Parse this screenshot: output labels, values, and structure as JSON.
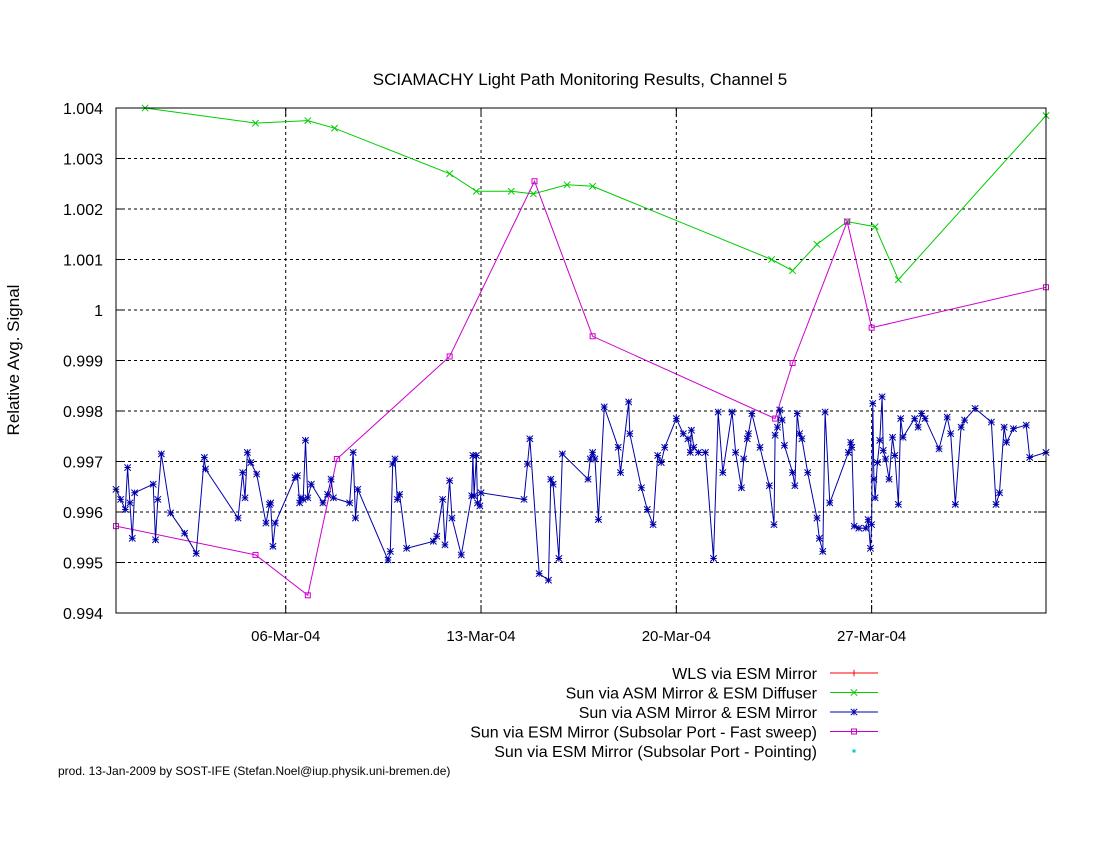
{
  "chart_data": {
    "type": "line",
    "title": "SCIAMACHY Light Path Monitoring Results, Channel 5",
    "ylabel": "Relative Avg. Signal",
    "xlabel": "",
    "xlim": [
      "2004-02-28T22:00",
      "2004-04-02T06:00"
    ],
    "ylim": [
      0.994,
      1.004
    ],
    "yticks": [
      {
        "value": 0.994,
        "label": "0.994"
      },
      {
        "value": 0.995,
        "label": "0.995"
      },
      {
        "value": 0.996,
        "label": "0.996"
      },
      {
        "value": 0.997,
        "label": "0.997"
      },
      {
        "value": 0.998,
        "label": "0.998"
      },
      {
        "value": 0.999,
        "label": "0.999"
      },
      {
        "value": 1.0,
        "label": "1"
      },
      {
        "value": 1.001,
        "label": "1.001"
      },
      {
        "value": 1.002,
        "label": "1.002"
      },
      {
        "value": 1.003,
        "label": "1.003"
      },
      {
        "value": 1.004,
        "label": "1.004"
      }
    ],
    "xticks": [
      {
        "value": "2004-03-06",
        "label": "06-Mar-04"
      },
      {
        "value": "2004-03-13",
        "label": "13-Mar-04"
      },
      {
        "value": "2004-03-20",
        "label": "20-Mar-04"
      },
      {
        "value": "2004-03-27",
        "label": "27-Mar-04"
      }
    ],
    "grid": true,
    "legend_position": "bottom-right",
    "series": [
      {
        "name": "WLS via ESM Mirror",
        "color": "#ff0000",
        "marker": "plus",
        "points": []
      },
      {
        "name": "Sun via ASM Mirror & ESM Diffuser",
        "color": "#00cc00",
        "marker": "cross",
        "points": [
          [
            "2004-02-29T23:00",
            1.004
          ],
          [
            "2004-03-04T22:00",
            1.0037
          ],
          [
            "2004-03-06T19:00",
            1.00375
          ],
          [
            "2004-03-07T18:00",
            1.0036
          ],
          [
            "2004-03-11T21:00",
            1.0027
          ],
          [
            "2004-03-12T20:00",
            1.00235
          ],
          [
            "2004-03-14T02:00",
            1.00235
          ],
          [
            "2004-03-14T21:00",
            1.0023
          ],
          [
            "2004-03-16T02:00",
            1.00248
          ],
          [
            "2004-03-17T00:00",
            1.00245
          ],
          [
            "2004-03-23T10:00",
            1.001
          ],
          [
            "2004-03-24T04:00",
            1.00078
          ],
          [
            "2004-03-25T01:00",
            1.0013
          ],
          [
            "2004-03-26T03:00",
            1.00175
          ],
          [
            "2004-03-27T03:00",
            1.00165
          ],
          [
            "2004-03-27T23:00",
            1.0006
          ],
          [
            "2004-04-02T06:00",
            1.00385
          ]
        ]
      },
      {
        "name": "Sun via ASM Mirror & ESM Mirror",
        "color": "#0000aa",
        "marker": "star",
        "points": [
          [
            "2004-02-28T22:00",
            0.99645
          ],
          [
            "2004-02-29T02:00",
            0.99625
          ],
          [
            "2004-02-29T06:00",
            0.99605
          ],
          [
            "2004-02-29T08:00",
            0.99688
          ],
          [
            "2004-02-29T10:00",
            0.99618
          ],
          [
            "2004-02-29T12:00",
            0.99548
          ],
          [
            "2004-02-29T14:00",
            0.99638
          ],
          [
            "2004-03-01T06:00",
            0.99655
          ],
          [
            "2004-03-01T08:00",
            0.99545
          ],
          [
            "2004-03-01T10:00",
            0.99625
          ],
          [
            "2004-03-01T13:00",
            0.99715
          ],
          [
            "2004-03-01T21:00",
            0.99598
          ],
          [
            "2004-03-02T09:00",
            0.99558
          ],
          [
            "2004-03-02T19:00",
            0.99518
          ],
          [
            "2004-03-03T02:00",
            0.99708
          ],
          [
            "2004-03-03T03:00",
            0.99685
          ],
          [
            "2004-03-04T07:00",
            0.99588
          ],
          [
            "2004-03-04T11:00",
            0.99678
          ],
          [
            "2004-03-04T13:00",
            0.99628
          ],
          [
            "2004-03-04T15:00",
            0.99718
          ],
          [
            "2004-03-04T18:00",
            0.99698
          ],
          [
            "2004-03-04T23:00",
            0.99675
          ],
          [
            "2004-03-05T07:00",
            0.99578
          ],
          [
            "2004-03-05T10:00",
            0.99615
          ],
          [
            "2004-03-05T11:00",
            0.99618
          ],
          [
            "2004-03-05T13:00",
            0.99532
          ],
          [
            "2004-03-05T15:00",
            0.99578
          ],
          [
            "2004-03-06T08:00",
            0.99668
          ],
          [
            "2004-03-06T10:00",
            0.99672
          ],
          [
            "2004-03-06T12:00",
            0.99618
          ],
          [
            "2004-03-06T13:00",
            0.99628
          ],
          [
            "2004-03-06T15:00",
            0.99625
          ],
          [
            "2004-03-06T17:00",
            0.99742
          ],
          [
            "2004-03-06T19:00",
            0.99628
          ],
          [
            "2004-03-06T22:00",
            0.99655
          ],
          [
            "2004-03-07T08:00",
            0.99618
          ],
          [
            "2004-03-07T12:00",
            0.99635
          ],
          [
            "2004-03-07T15:00",
            0.99665
          ],
          [
            "2004-03-07T17:00",
            0.99628
          ],
          [
            "2004-03-08T07:00",
            0.99618
          ],
          [
            "2004-03-08T10:00",
            0.99718
          ],
          [
            "2004-03-08T12:00",
            0.99588
          ],
          [
            "2004-03-08T14:00",
            0.99645
          ],
          [
            "2004-03-09T16:00",
            0.99505
          ],
          [
            "2004-03-09T18:00",
            0.99522
          ],
          [
            "2004-03-09T20:00",
            0.99695
          ],
          [
            "2004-03-09T22:00",
            0.99705
          ],
          [
            "2004-03-10T00:00",
            0.99625
          ],
          [
            "2004-03-10T02:00",
            0.99635
          ],
          [
            "2004-03-10T08:00",
            0.99528
          ],
          [
            "2004-03-11T07:00",
            0.99542
          ],
          [
            "2004-03-11T10:00",
            0.99552
          ],
          [
            "2004-03-11T15:00",
            0.99625
          ],
          [
            "2004-03-11T17:00",
            0.99535
          ],
          [
            "2004-03-11T21:00",
            0.99662
          ],
          [
            "2004-03-11T23:00",
            0.99588
          ],
          [
            "2004-03-12T07:00",
            0.99515
          ],
          [
            "2004-03-12T16:00",
            0.99632
          ],
          [
            "2004-03-12T17:00",
            0.99712
          ],
          [
            "2004-03-12T18:00",
            0.99632
          ],
          [
            "2004-03-12T20:00",
            0.99712
          ],
          [
            "2004-03-12T21:00",
            0.99618
          ],
          [
            "2004-03-12T23:00",
            0.99612
          ],
          [
            "2004-03-13T00:00",
            0.99638
          ],
          [
            "2004-03-14T13:00",
            0.99625
          ],
          [
            "2004-03-14T16:00",
            0.99695
          ],
          [
            "2004-03-14T18:00",
            0.99745
          ],
          [
            "2004-03-15T02:00",
            0.99478
          ],
          [
            "2004-03-15T10:00",
            0.99465
          ],
          [
            "2004-03-15T12:00",
            0.99665
          ],
          [
            "2004-03-15T14:00",
            0.99655
          ],
          [
            "2004-03-15T19:00",
            0.99508
          ],
          [
            "2004-03-15T22:00",
            0.99715
          ],
          [
            "2004-03-16T20:00",
            0.99665
          ],
          [
            "2004-03-16T22:00",
            0.99705
          ],
          [
            "2004-03-17T00:00",
            0.99718
          ],
          [
            "2004-03-17T02:00",
            0.99705
          ],
          [
            "2004-03-17T05:00",
            0.99585
          ],
          [
            "2004-03-17T10:00",
            0.99808
          ],
          [
            "2004-03-17T22:00",
            0.99728
          ],
          [
            "2004-03-18T00:00",
            0.99678
          ],
          [
            "2004-03-18T07:00",
            0.99818
          ],
          [
            "2004-03-18T08:00",
            0.99755
          ],
          [
            "2004-03-18T18:00",
            0.99648
          ],
          [
            "2004-03-18T23:00",
            0.99605
          ],
          [
            "2004-03-19T04:00",
            0.99575
          ],
          [
            "2004-03-19T08:00",
            0.99712
          ],
          [
            "2004-03-19T11:00",
            0.99698
          ],
          [
            "2004-03-19T14:00",
            0.99728
          ],
          [
            "2004-03-20T00:00",
            0.99785
          ],
          [
            "2004-03-20T06:00",
            0.99755
          ],
          [
            "2004-03-20T10:00",
            0.99745
          ],
          [
            "2004-03-20T12:00",
            0.99718
          ],
          [
            "2004-03-20T13:00",
            0.99762
          ],
          [
            "2004-03-20T15:00",
            0.99728
          ],
          [
            "2004-03-20T19:00",
            0.99718
          ],
          [
            "2004-03-21T01:00",
            0.99718
          ],
          [
            "2004-03-21T08:00",
            0.99508
          ],
          [
            "2004-03-21T12:00",
            0.99798
          ],
          [
            "2004-03-21T16:00",
            0.99678
          ],
          [
            "2004-03-22T00:00",
            0.99798
          ],
          [
            "2004-03-22T03:00",
            0.99718
          ],
          [
            "2004-03-22T08:00",
            0.99648
          ],
          [
            "2004-03-22T10:00",
            0.99705
          ],
          [
            "2004-03-22T13:00",
            0.99745
          ],
          [
            "2004-03-22T14:00",
            0.99755
          ],
          [
            "2004-03-22T17:00",
            0.99795
          ],
          [
            "2004-03-23T00:00",
            0.99728
          ],
          [
            "2004-03-23T08:00",
            0.99652
          ],
          [
            "2004-03-23T12:00",
            0.99575
          ],
          [
            "2004-03-23T13:00",
            0.99752
          ],
          [
            "2004-03-23T15:00",
            0.99768
          ],
          [
            "2004-03-23T17:00",
            0.99802
          ],
          [
            "2004-03-23T19:00",
            0.99782
          ],
          [
            "2004-03-23T21:00",
            0.99732
          ],
          [
            "2004-03-24T04:00",
            0.99678
          ],
          [
            "2004-03-24T06:00",
            0.99652
          ],
          [
            "2004-03-24T08:00",
            0.99795
          ],
          [
            "2004-03-24T10:00",
            0.99755
          ],
          [
            "2004-03-24T12:00",
            0.99745
          ],
          [
            "2004-03-24T17:00",
            0.99678
          ],
          [
            "2004-03-25T01:00",
            0.99588
          ],
          [
            "2004-03-25T03:00",
            0.99548
          ],
          [
            "2004-03-25T06:00",
            0.99522
          ],
          [
            "2004-03-25T08:00",
            0.99798
          ],
          [
            "2004-03-25T12:00",
            0.99618
          ],
          [
            "2004-03-26T04:00",
            0.99718
          ],
          [
            "2004-03-26T06:00",
            0.99738
          ],
          [
            "2004-03-26T07:00",
            0.99728
          ],
          [
            "2004-03-26T09:00",
            0.99572
          ],
          [
            "2004-03-26T13:00",
            0.99568
          ],
          [
            "2004-03-26T19:00",
            0.99568
          ],
          [
            "2004-03-26T21:00",
            0.99585
          ],
          [
            "2004-03-26T23:00",
            0.99528
          ],
          [
            "2004-03-27T00:00",
            0.99575
          ],
          [
            "2004-03-27T01:00",
            0.99815
          ],
          [
            "2004-03-27T02:00",
            0.99665
          ],
          [
            "2004-03-27T03:00",
            0.99628
          ],
          [
            "2004-03-27T05:00",
            0.99698
          ],
          [
            "2004-03-27T07:00",
            0.99742
          ],
          [
            "2004-03-27T09:00",
            0.99828
          ],
          [
            "2004-03-27T10:00",
            0.99722
          ],
          [
            "2004-03-27T12:00",
            0.99705
          ],
          [
            "2004-03-27T15:00",
            0.99665
          ],
          [
            "2004-03-27T18:00",
            0.99748
          ],
          [
            "2004-03-27T20:00",
            0.99712
          ],
          [
            "2004-03-27T23:00",
            0.99615
          ],
          [
            "2004-03-28T01:00",
            0.99785
          ],
          [
            "2004-03-28T03:00",
            0.99748
          ],
          [
            "2004-03-28T13:00",
            0.99785
          ],
          [
            "2004-03-28T16:00",
            0.99768
          ],
          [
            "2004-03-28T19:00",
            0.99795
          ],
          [
            "2004-03-28T22:00",
            0.99785
          ],
          [
            "2004-03-29T10:00",
            0.99725
          ],
          [
            "2004-03-29T17:00",
            0.99788
          ],
          [
            "2004-03-29T20:00",
            0.99755
          ],
          [
            "2004-03-30T00:00",
            0.99615
          ],
          [
            "2004-03-30T05:00",
            0.99768
          ],
          [
            "2004-03-30T08:00",
            0.99782
          ],
          [
            "2004-03-30T17:00",
            0.99805
          ],
          [
            "2004-03-31T07:00",
            0.99778
          ],
          [
            "2004-03-31T11:00",
            0.99615
          ],
          [
            "2004-03-31T14:00",
            0.99638
          ],
          [
            "2004-03-31T18:00",
            0.99768
          ],
          [
            "2004-03-31T20:00",
            0.99738
          ],
          [
            "2004-04-01T02:00",
            0.99765
          ],
          [
            "2004-04-01T13:00",
            0.99772
          ],
          [
            "2004-04-01T16:00",
            0.99708
          ],
          [
            "2004-04-02T06:00",
            0.99718
          ]
        ]
      },
      {
        "name": "Sun via ESM Mirror (Subsolar Port - Fast sweep)",
        "color": "#cc00cc",
        "marker": "square",
        "points": [
          [
            "2004-02-28T22:00",
            0.99572
          ],
          [
            "2004-03-04T22:00",
            0.99515
          ],
          [
            "2004-03-06T19:00",
            0.99435
          ],
          [
            "2004-03-07T20:00",
            0.99705
          ],
          [
            "2004-03-11T21:00",
            0.99908
          ],
          [
            "2004-03-14T22:00",
            1.00255
          ],
          [
            "2004-03-17T00:00",
            0.99948
          ],
          [
            "2004-03-23T13:00",
            0.99785
          ],
          [
            "2004-03-24T04:00",
            0.99895
          ],
          [
            "2004-03-26T03:00",
            1.00175
          ],
          [
            "2004-03-27T00:00",
            0.99965
          ],
          [
            "2004-04-02T06:00",
            1.00045
          ]
        ]
      },
      {
        "name": "Sun via ESM Mirror (Subsolar Port - Pointing)",
        "color": "#00cccc",
        "marker": "dot",
        "points": []
      }
    ],
    "footer": "prod. 13-Jan-2009 by SOST-IFE (Stefan.Noel@iup.physik.uni-bremen.de)"
  }
}
